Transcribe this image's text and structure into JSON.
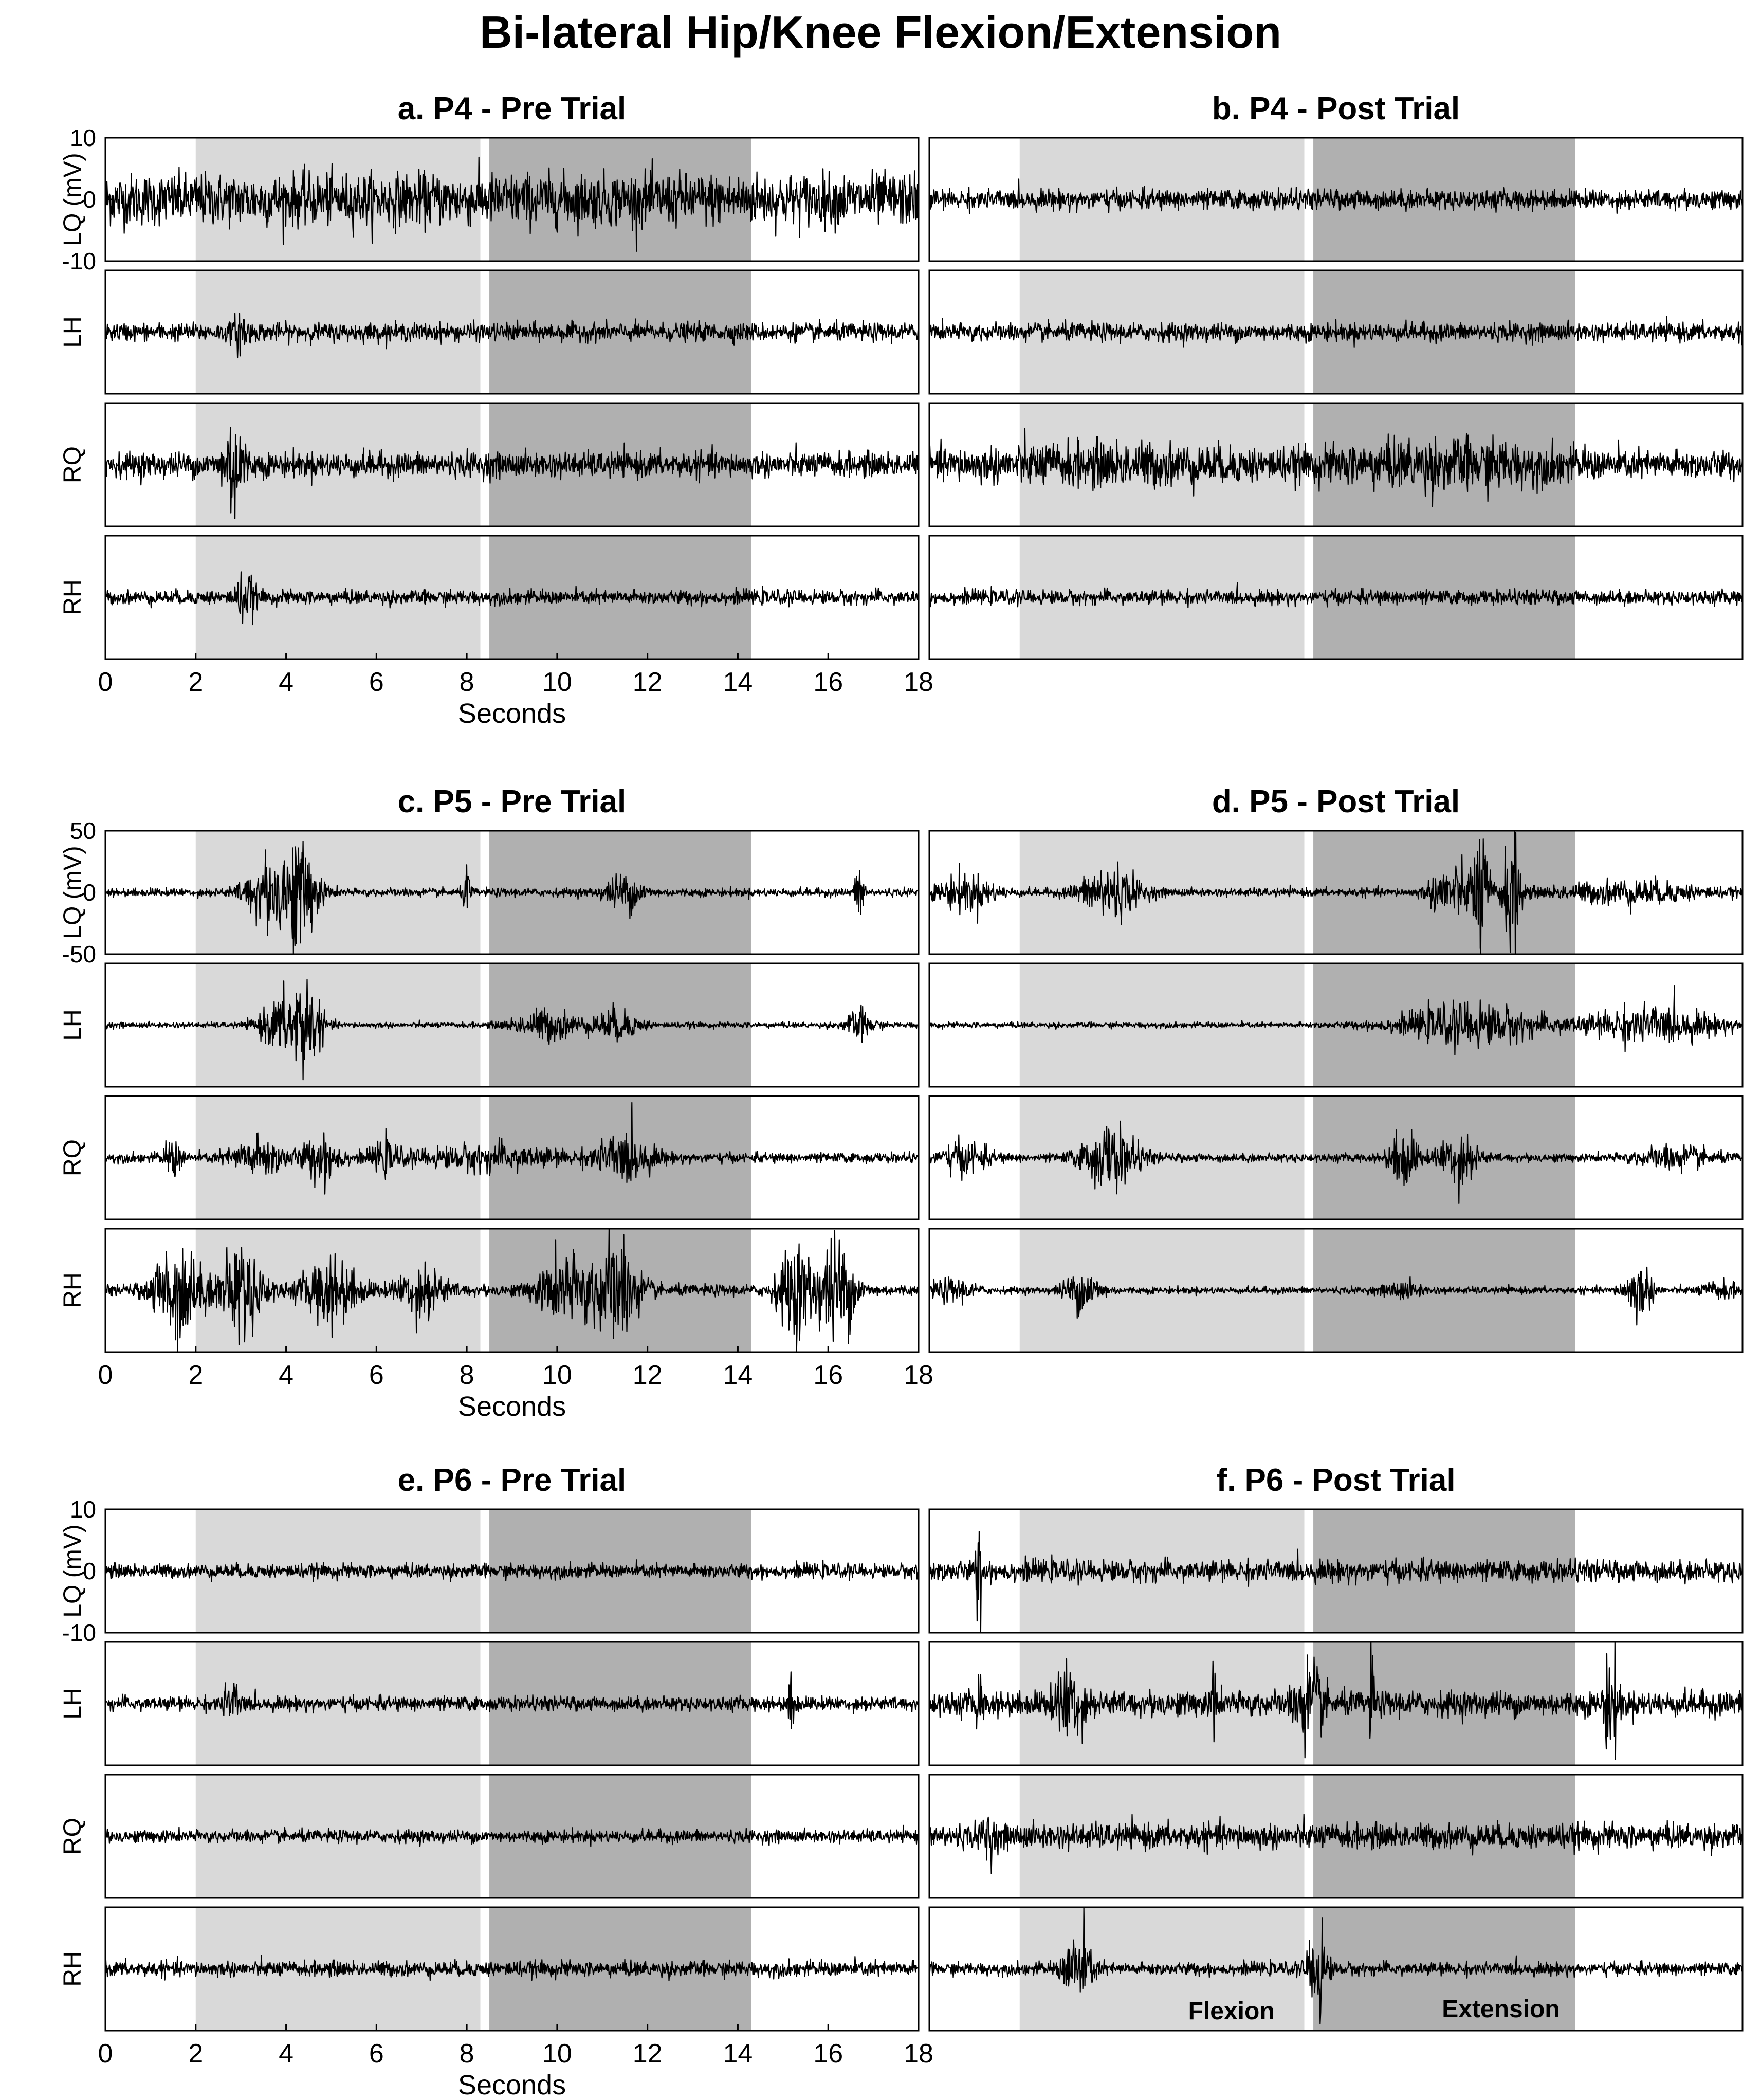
{
  "title": "Bi-lateral Hip/Knee Flexion/Extension",
  "phase_labels": {
    "flexion": "Flexion",
    "extension": "Extension"
  },
  "colors": {
    "flexion_shade": "#d9d9d9",
    "extension_shade": "#b0b0b0",
    "signal": "#000000",
    "signal_secondary": "#606060"
  },
  "chart_data": [
    {
      "type": "line",
      "id": "a",
      "title": "a. P4 - Pre Trial",
      "xlabel": "Seconds",
      "ylabel": "LQ (mV)",
      "xlim": [
        0,
        18
      ],
      "ylim": [
        -10,
        10
      ],
      "xticks": [
        0,
        2,
        4,
        6,
        8,
        10,
        12,
        14,
        16,
        18
      ],
      "yticks": [
        10,
        0,
        -10
      ],
      "flexion_interval": [
        2,
        8.3
      ],
      "extension_interval": [
        8.5,
        14.3
      ],
      "series": [
        {
          "name": "LQ",
          "baseline_amplitude": 3.8,
          "bursts": []
        },
        {
          "name": "LH",
          "baseline_amplitude": 1.3,
          "bursts": [
            [
              3.0,
              0.15,
              3
            ]
          ]
        },
        {
          "name": "RQ",
          "baseline_amplitude": 1.8,
          "bursts": [
            [
              2.8,
              0.2,
              6
            ],
            [
              2.95,
              0.15,
              4
            ]
          ]
        },
        {
          "name": "RH",
          "baseline_amplitude": 1.0,
          "bursts": [
            [
              3.1,
              0.2,
              3.5
            ]
          ]
        }
      ]
    },
    {
      "type": "line",
      "id": "b",
      "title": "b. P4 - Post Trial",
      "xlabel": "",
      "ylabel": "",
      "xlim": [
        0,
        18
      ],
      "ylim": [
        -10,
        10
      ],
      "xticks": [],
      "yticks": [],
      "flexion_interval": [
        2,
        8.3
      ],
      "extension_interval": [
        8.5,
        14.3
      ],
      "series": [
        {
          "name": "LQ",
          "baseline_amplitude": 1.4,
          "bursts": []
        },
        {
          "name": "LH",
          "baseline_amplitude": 1.3,
          "bursts": []
        },
        {
          "name": "RQ",
          "baseline_amplitude": 2.0,
          "bursts": [
            [
              4,
              3,
              1.6
            ],
            [
              11.5,
              2.5,
              2.2
            ]
          ]
        },
        {
          "name": "RH",
          "baseline_amplitude": 1.0,
          "bursts": []
        }
      ]
    },
    {
      "type": "line",
      "id": "c",
      "title": "c. P5 - Pre Trial",
      "xlabel": "Seconds",
      "ylabel": "LQ (mV)",
      "xlim": [
        0,
        18
      ],
      "ylim": [
        -50,
        50
      ],
      "xticks": [
        0,
        2,
        4,
        6,
        8,
        10,
        12,
        14,
        16,
        18
      ],
      "yticks": [
        50,
        0,
        -50
      ],
      "flexion_interval": [
        2,
        8.3
      ],
      "extension_interval": [
        8.5,
        14.3
      ],
      "series": [
        {
          "name": "LQ",
          "baseline_amplitude": 3,
          "bursts": [
            [
              3.6,
              0.5,
              25
            ],
            [
              4.3,
              0.4,
              40
            ],
            [
              8.0,
              0.08,
              18
            ],
            [
              11.5,
              0.4,
              14
            ],
            [
              16.7,
              0.1,
              22
            ]
          ]
        },
        {
          "name": "LH",
          "baseline_amplitude": 2,
          "bursts": [
            [
              3.8,
              0.4,
              18
            ],
            [
              4.4,
              0.35,
              40
            ],
            [
              9.8,
              0.7,
              12
            ],
            [
              11.3,
              0.5,
              12
            ],
            [
              16.7,
              0.3,
              12
            ]
          ]
        },
        {
          "name": "RQ",
          "baseline_amplitude": 3.5,
          "bursts": [
            [
              1.5,
              0.2,
              14
            ],
            [
              3.4,
              0.6,
              14
            ],
            [
              4.8,
              0.4,
              18
            ],
            [
              6.2,
              0.3,
              10
            ],
            [
              8.5,
              1.6,
              8
            ],
            [
              11.5,
              0.6,
              18
            ]
          ]
        },
        {
          "name": "RH",
          "baseline_amplitude": 4,
          "bursts": [
            [
              1.6,
              0.5,
              40
            ],
            [
              3.0,
              0.5,
              36
            ],
            [
              5.0,
              0.6,
              26
            ],
            [
              7.0,
              0.5,
              20
            ],
            [
              10.2,
              0.6,
              26
            ],
            [
              11.3,
              0.5,
              42
            ],
            [
              15.3,
              0.4,
              36
            ],
            [
              16.2,
              0.4,
              42
            ]
          ]
        }
      ]
    },
    {
      "type": "line",
      "id": "d",
      "title": "d. P5 - Post Trial",
      "xlabel": "",
      "ylabel": "",
      "xlim": [
        0,
        18
      ],
      "ylim": [
        -50,
        50
      ],
      "xticks": [],
      "yticks": [],
      "flexion_interval": [
        2,
        8.3
      ],
      "extension_interval": [
        8.5,
        14.3
      ],
      "series": [
        {
          "name": "LQ",
          "baseline_amplitude": 3,
          "bursts": [
            [
              0.8,
              0.6,
              14
            ],
            [
              4.0,
              0.6,
              22
            ],
            [
              11.5,
              0.4,
              22
            ],
            [
              12.2,
              0.2,
              50
            ],
            [
              12.9,
              0.2,
              50
            ],
            [
              15.5,
              1.5,
              8
            ]
          ]
        },
        {
          "name": "LH",
          "baseline_amplitude": 2,
          "bursts": [
            [
              12.0,
              1.5,
              16
            ],
            [
              16.0,
              1.5,
              14
            ]
          ]
        },
        {
          "name": "RQ",
          "baseline_amplitude": 3,
          "bursts": [
            [
              0.8,
              0.5,
              12
            ],
            [
              4.0,
              0.6,
              24
            ],
            [
              10.5,
              0.3,
              24
            ],
            [
              11.7,
              0.4,
              22
            ],
            [
              16.5,
              0.8,
              8
            ]
          ]
        },
        {
          "name": "RH",
          "baseline_amplitude": 2.5,
          "bursts": [
            [
              0.5,
              0.5,
              8
            ],
            [
              3.4,
              0.4,
              16
            ],
            [
              10.5,
              0.4,
              6
            ],
            [
              15.7,
              0.3,
              22
            ],
            [
              17.5,
              0.4,
              6
            ]
          ]
        }
      ]
    },
    {
      "type": "line",
      "id": "e",
      "title": "e. P6 - Pre Trial",
      "xlabel": "Seconds",
      "ylabel": "LQ (mV)",
      "xlim": [
        0,
        18
      ],
      "ylim": [
        -10,
        10
      ],
      "xticks": [
        0,
        2,
        4,
        6,
        8,
        10,
        12,
        14,
        16,
        18
      ],
      "yticks": [
        10,
        0,
        -10
      ],
      "flexion_interval": [
        2,
        8.3
      ],
      "extension_interval": [
        8.5,
        14.3
      ],
      "series": [
        {
          "name": "LQ",
          "baseline_amplitude": 1.0,
          "bursts": []
        },
        {
          "name": "LH",
          "baseline_amplitude": 1.0,
          "bursts": [
            [
              2.8,
              0.2,
              3
            ],
            [
              15.2,
              0.1,
              4
            ]
          ]
        },
        {
          "name": "RQ",
          "baseline_amplitude": 0.9,
          "bursts": []
        },
        {
          "name": "RH",
          "baseline_amplitude": 1.1,
          "bursts": []
        }
      ]
    },
    {
      "type": "line",
      "id": "f",
      "title": "f. P6 - Post Trial",
      "xlabel": "",
      "ylabel": "",
      "xlim": [
        0,
        18
      ],
      "ylim": [
        -10,
        10
      ],
      "xticks": [],
      "yticks": [],
      "flexion_interval": [
        2,
        8.3
      ],
      "extension_interval": [
        8.5,
        14.3
      ],
      "series": [
        {
          "name": "LQ",
          "baseline_amplitude": 1.5,
          "bursts": [
            [
              1.1,
              0.06,
              10
            ]
          ]
        },
        {
          "name": "LH",
          "baseline_amplitude": 1.8,
          "bursts": [
            [
              1.1,
              0.06,
              5
            ],
            [
              3.1,
              0.3,
              6
            ],
            [
              6.3,
              0.05,
              8
            ],
            [
              8.4,
              0.3,
              6
            ],
            [
              9.8,
              0.05,
              9
            ],
            [
              15.1,
              0.15,
              9
            ]
          ]
        },
        {
          "name": "RQ",
          "baseline_amplitude": 1.8,
          "bursts": [
            [
              1.3,
              0.1,
              4
            ]
          ]
        },
        {
          "name": "RH",
          "baseline_amplitude": 0.9,
          "bursts": [
            [
              3.3,
              0.3,
              6
            ],
            [
              8.6,
              0.2,
              8
            ]
          ]
        }
      ]
    }
  ]
}
